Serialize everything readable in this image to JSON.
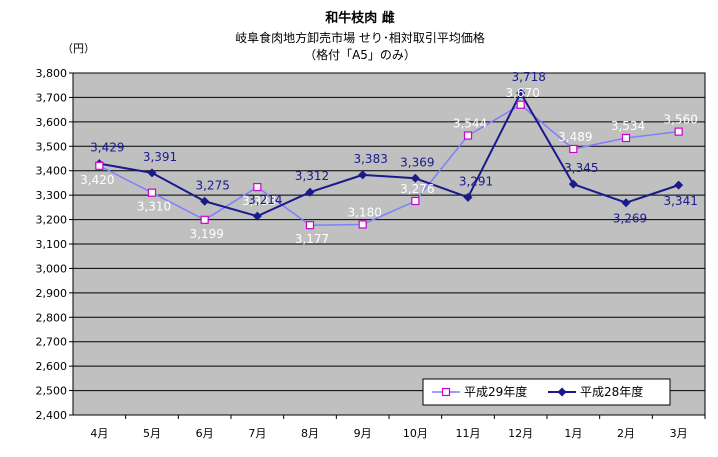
{
  "chart_data": {
    "type": "line",
    "title": "和牛枝肉 雌",
    "subtitle_lines": [
      "岐阜食肉地方卸売市場 せり･相対取引平均価格",
      "（格付「A5」のみ）"
    ],
    "ylabel": "（円）",
    "xlabel": "",
    "categories": [
      "4月",
      "5月",
      "6月",
      "7月",
      "8月",
      "9月",
      "10月",
      "11月",
      "12月",
      "1月",
      "2月",
      "3月"
    ],
    "ylim": [
      2400,
      3800
    ],
    "ystep": 100,
    "yticks": [
      "2,400",
      "2,500",
      "2,600",
      "2,700",
      "2,800",
      "2,900",
      "3,000",
      "3,100",
      "3,200",
      "3,300",
      "3,400",
      "3,500",
      "3,600",
      "3,700",
      "3,800"
    ],
    "grid": true,
    "legend_position": "bottom-right",
    "series": [
      {
        "name": "平成29年度",
        "values": [
          3420,
          3310,
          3199,
          3333,
          3177,
          3180,
          3276,
          3544,
          3670,
          3489,
          3534,
          3560
        ],
        "labels": [
          "3,420",
          "3,310",
          "3,199",
          "3,333",
          "3,177",
          "3,180",
          "3,276",
          "3,544",
          "3,670",
          "3,489",
          "3,534",
          "3,560"
        ],
        "color": "#7f7fff",
        "marker": "square-open",
        "marker_color": "#cc00cc"
      },
      {
        "name": "平成28年度",
        "values": [
          3429,
          3391,
          3275,
          3214,
          3312,
          3383,
          3369,
          3291,
          3718,
          3345,
          3269,
          3341
        ],
        "labels": [
          "3,429",
          "3,391",
          "3,275",
          "3,214",
          "3,312",
          "3,383",
          "3,369",
          "3,291",
          "3,718",
          "3,345",
          "3,269",
          "3,341"
        ],
        "color": "#1a1a8c",
        "marker": "diamond-filled",
        "marker_color": "#1a1a8c"
      }
    ]
  },
  "colors": {
    "plot_background": "#c0c0c0",
    "grid": "#000000"
  }
}
